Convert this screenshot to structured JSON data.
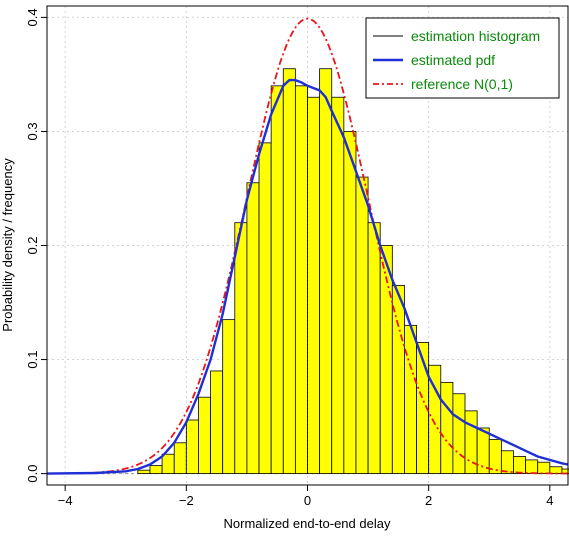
{
  "chart_data": {
    "type": "bar",
    "xlabel": "Normalized end-to-end delay",
    "ylabel": "Probability density / frequency",
    "xlim": [
      -4.3,
      4.3
    ],
    "ylim": [
      -0.01,
      0.41
    ],
    "x_ticks": [
      -4,
      -2,
      0,
      2,
      4
    ],
    "x_tick_labels": [
      "−4",
      "−2",
      "0",
      "2",
      "4"
    ],
    "y_ticks": [
      0.0,
      0.1,
      0.2,
      0.3,
      0.4
    ],
    "y_tick_labels": [
      "0.0",
      "0.1",
      "0.2",
      "0.3",
      "0.4"
    ],
    "grid": true,
    "legend_position": "top-right",
    "legend": [
      {
        "label": "estimation histogram",
        "color": "#000000",
        "style": "solid-thin"
      },
      {
        "label": "estimated pdf",
        "color": "#1f2fd6",
        "style": "solid-thick"
      },
      {
        "label": "reference N(0,1)",
        "color": "#e8151b",
        "style": "dashdot"
      }
    ],
    "legend_text_color": "#0a8a0a",
    "histogram": {
      "bin_width": 0.2,
      "bin_left_edges": [
        -2.8,
        -2.6,
        -2.4,
        -2.2,
        -2.0,
        -1.8,
        -1.6,
        -1.4,
        -1.2,
        -1.0,
        -0.8,
        -0.6,
        -0.4,
        -0.2,
        0.0,
        0.2,
        0.4,
        0.6,
        0.8,
        1.0,
        1.2,
        1.4,
        1.6,
        1.8,
        2.0,
        2.2,
        2.4,
        2.6,
        2.8,
        3.0,
        3.2,
        3.4,
        3.6,
        3.8,
        4.0,
        4.2
      ],
      "values": [
        0.003,
        0.007,
        0.017,
        0.027,
        0.047,
        0.067,
        0.09,
        0.135,
        0.22,
        0.255,
        0.29,
        0.34,
        0.355,
        0.34,
        0.33,
        0.355,
        0.33,
        0.3,
        0.26,
        0.22,
        0.2,
        0.165,
        0.13,
        0.115,
        0.095,
        0.08,
        0.07,
        0.055,
        0.04,
        0.03,
        0.02,
        0.015,
        0.012,
        0.01,
        0.006,
        0.004
      ],
      "fill": "#ffff00",
      "edge": "#000000"
    },
    "estimated_pdf": {
      "x": [
        -4.3,
        -3.5,
        -3.0,
        -2.8,
        -2.6,
        -2.4,
        -2.2,
        -2.0,
        -1.8,
        -1.6,
        -1.4,
        -1.2,
        -1.0,
        -0.8,
        -0.6,
        -0.4,
        -0.3,
        -0.2,
        -0.1,
        0.0,
        0.1,
        0.2,
        0.3,
        0.4,
        0.6,
        0.8,
        1.0,
        1.2,
        1.4,
        1.6,
        1.8,
        2.0,
        2.2,
        2.4,
        2.6,
        2.8,
        3.0,
        3.2,
        3.4,
        3.6,
        3.8,
        4.0,
        4.2,
        4.3
      ],
      "y": [
        0.0,
        0.0005,
        0.002,
        0.004,
        0.008,
        0.015,
        0.027,
        0.045,
        0.07,
        0.1,
        0.14,
        0.19,
        0.24,
        0.28,
        0.315,
        0.34,
        0.345,
        0.345,
        0.343,
        0.34,
        0.338,
        0.336,
        0.33,
        0.318,
        0.295,
        0.265,
        0.235,
        0.2,
        0.17,
        0.145,
        0.115,
        0.085,
        0.065,
        0.052,
        0.045,
        0.04,
        0.035,
        0.03,
        0.025,
        0.02,
        0.015,
        0.012,
        0.009,
        0.008
      ],
      "color": "#1f2fd6"
    },
    "reference_pdf": {
      "name": "N(0,1)",
      "color": "#e8151b"
    }
  }
}
